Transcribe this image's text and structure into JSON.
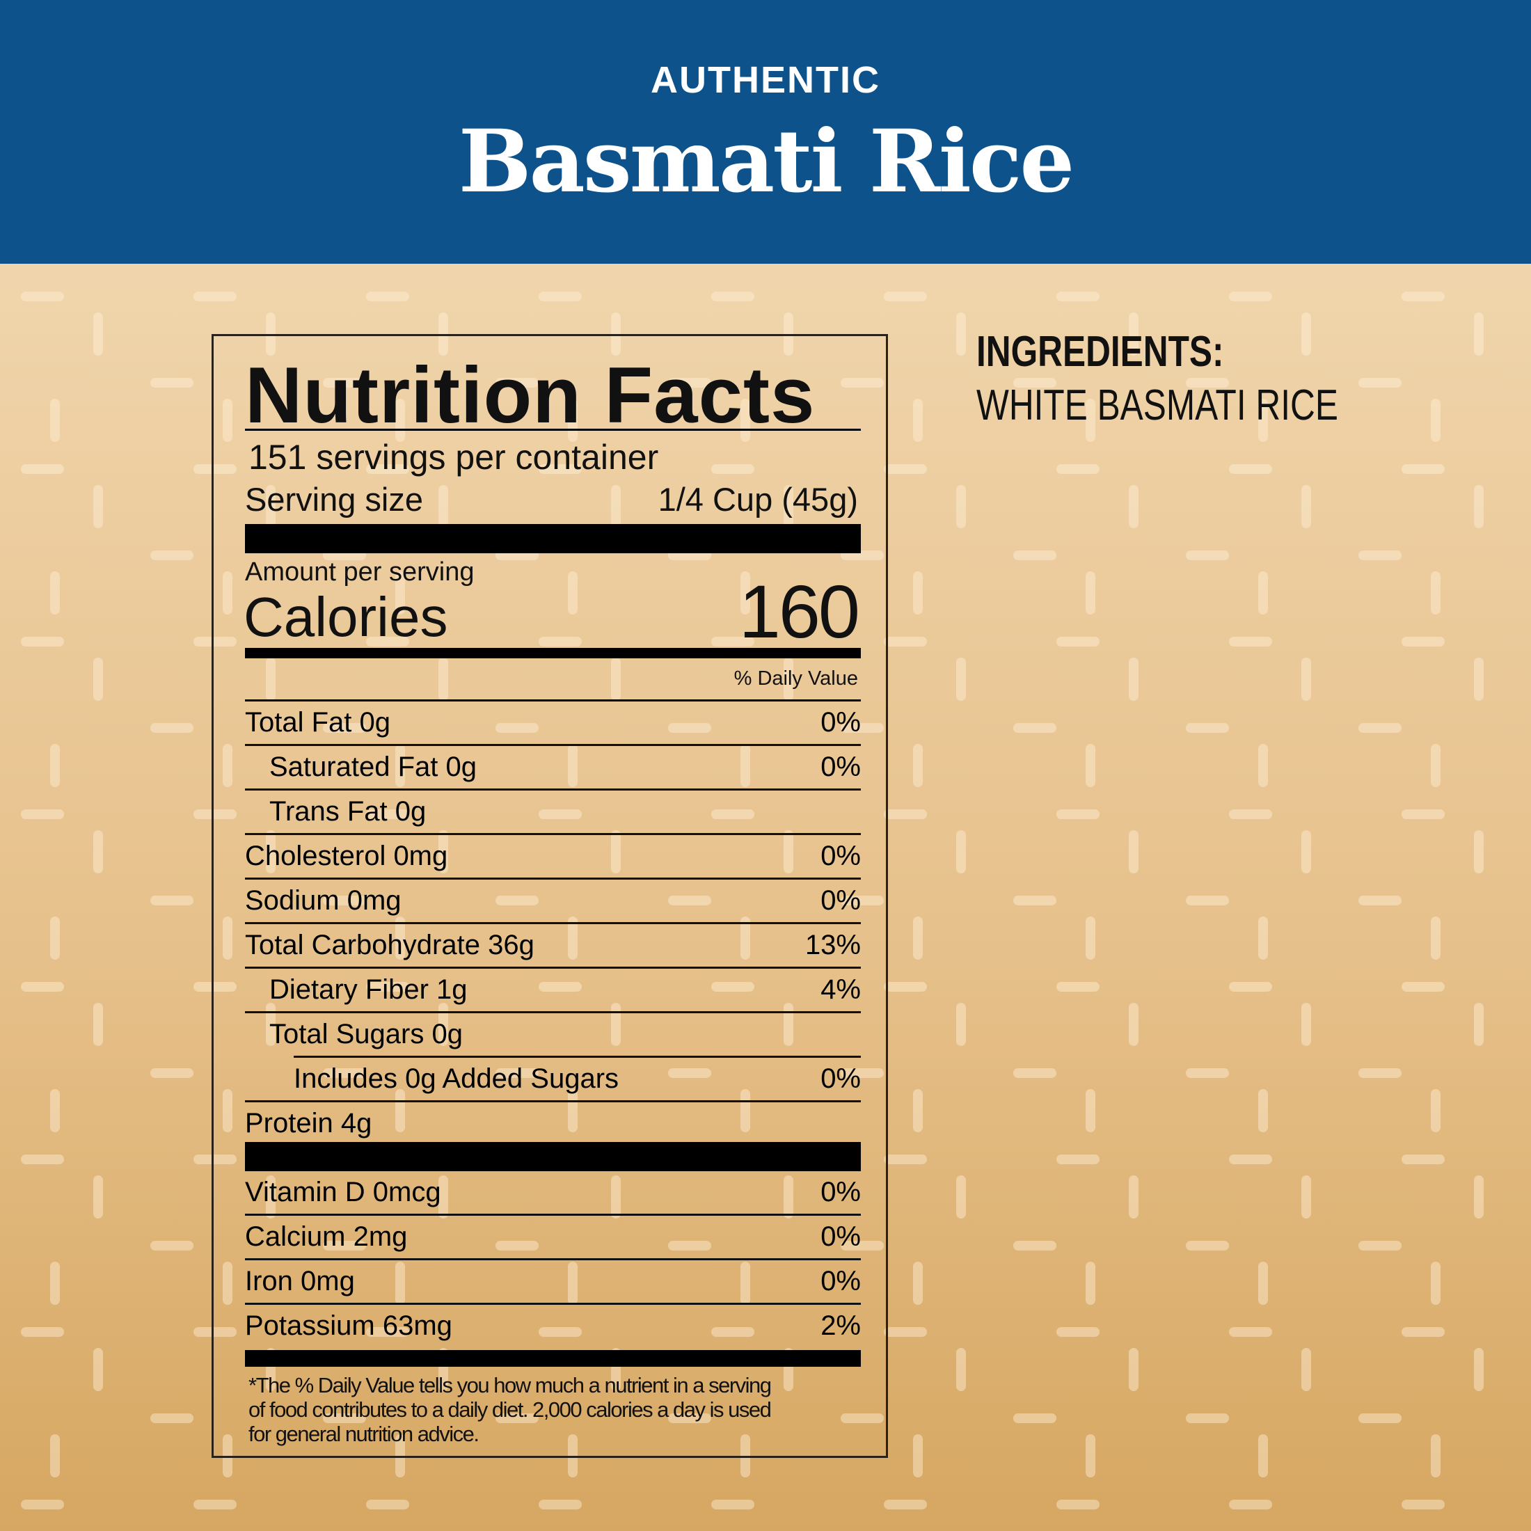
{
  "header": {
    "kicker": "AUTHENTIC",
    "title": "Basmati Rice",
    "color": "#0d528b"
  },
  "nutrition": {
    "title": "Nutrition Facts",
    "servings": "151 servings per container",
    "serving_size_label": "Serving size",
    "serving_size_value": "1/4 Cup (45g)",
    "amount_label": "Amount per serving",
    "calories_label": "Calories",
    "calories_value": "160",
    "dv_header": "% Daily Value",
    "rows": [
      {
        "name": "Total Fat 0g",
        "dv": "0%",
        "indent": 0
      },
      {
        "name": "Saturated Fat 0g",
        "dv": "0%",
        "indent": 1
      },
      {
        "name": "Trans Fat 0g",
        "dv": "",
        "indent": 1
      },
      {
        "name": "Cholesterol 0mg",
        "dv": "0%",
        "indent": 0
      },
      {
        "name": "Sodium 0mg",
        "dv": "0%",
        "indent": 0
      },
      {
        "name": "Total Carbohydrate 36g",
        "dv": "13%",
        "indent": 0
      },
      {
        "name": "Dietary Fiber 1g",
        "dv": "4%",
        "indent": 1
      },
      {
        "name": "Total Sugars 0g",
        "dv": "",
        "indent": 1
      },
      {
        "name": "Includes 0g Added Sugars",
        "dv": "0%",
        "indent": 2
      },
      {
        "name": "Protein 4g",
        "dv": "",
        "indent": 0
      }
    ],
    "vitamins": [
      {
        "name": "Vitamin D 0mcg",
        "dv": "0%"
      },
      {
        "name": "Calcium 2mg",
        "dv": "0%"
      },
      {
        "name": "Iron 0mg",
        "dv": "0%"
      },
      {
        "name": "Potassium 63mg",
        "dv": "2%"
      }
    ],
    "footnote": "*The % Daily Value tells you how much a nutrient in a serving of food contributes to a daily diet. 2,000 calories a day is used for general nutrition advice."
  },
  "ingredients": {
    "heading": "INGREDIENTS:",
    "text": "WHITE BASMATI RICE"
  }
}
